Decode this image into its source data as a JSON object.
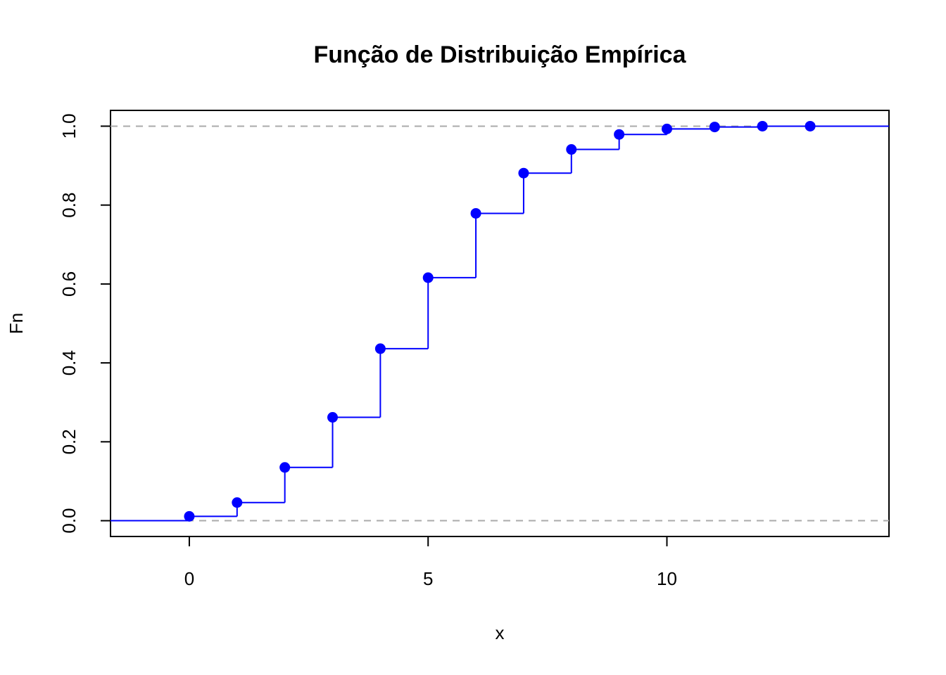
{
  "chart_data": {
    "type": "step",
    "title": "Função de Distribuição Empírica",
    "x_label": "x",
    "y_label": "Fn",
    "x": [
      0,
      1,
      2,
      3,
      4,
      5,
      6,
      7,
      8,
      9,
      10,
      11,
      12,
      13
    ],
    "values": [
      0.011,
      0.046,
      0.135,
      0.262,
      0.436,
      0.616,
      0.779,
      0.881,
      0.941,
      0.979,
      0.993,
      0.998,
      1.0,
      1.0
    ],
    "color": "#0000ff",
    "reference_lines": [
      0,
      1
    ],
    "reference_color": "#aaaaaa",
    "xlim": [
      -1.65,
      14.65
    ],
    "xticks": [
      0,
      5,
      10
    ],
    "ylim": [
      -0.04,
      1.04
    ],
    "yticks": [
      {
        "value": 0,
        "label": "0.0"
      },
      0.2,
      0.4,
      0.6,
      0.8,
      {
        "value": 1,
        "label": "1.0"
      }
    ]
  }
}
